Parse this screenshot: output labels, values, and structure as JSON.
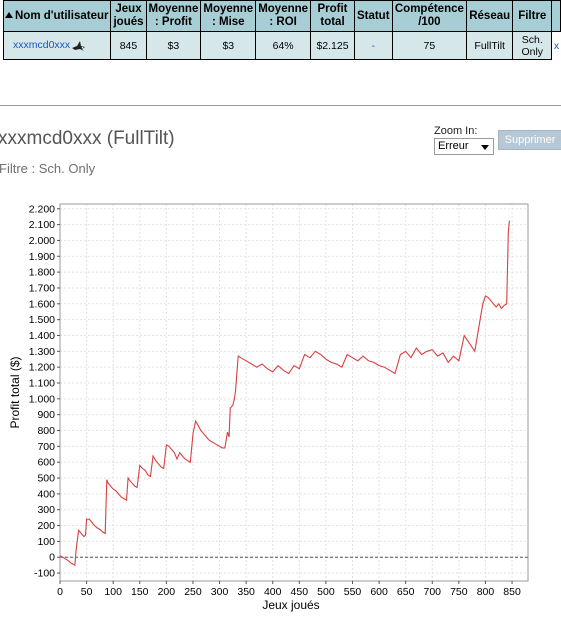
{
  "table": {
    "headers": {
      "user": "Nom d'utilisateur",
      "games": [
        "Jeux",
        "joués"
      ],
      "avg_profit": [
        "Moyenne",
        ": Profit"
      ],
      "avg_stake": [
        "Moyenne",
        ": Mise"
      ],
      "avg_roi": [
        "Moyenne",
        ": ROI"
      ],
      "total_profit": [
        "Profit",
        "total"
      ],
      "status": "Statut",
      "skill": [
        "Compétence",
        "/100"
      ],
      "network": "Réseau",
      "filter": "Filtre"
    },
    "row": {
      "user": "xxxmcd0xxx",
      "games": "845",
      "avg_profit": "$3",
      "avg_stake": "$3",
      "avg_roi": "64%",
      "total_profit": "$2.125",
      "status": "-",
      "skill": "75",
      "network": "FullTilt",
      "filter": [
        "Sch.",
        "Only"
      ],
      "remove": "x"
    }
  },
  "header": {
    "title": "xxxmcd0xxx (FullTilt)",
    "filter_text": "Filtre : Sch. Only",
    "zoom_label": "Zoom In:",
    "zoom_value": "Erreur",
    "delete_label": "Supprimer"
  },
  "chart_data": {
    "type": "line",
    "xlabel": "Jeux joués",
    "ylabel": "Profit total ($)",
    "xlim": [
      0,
      880
    ],
    "ylim": [
      -150,
      2230
    ],
    "x_ticks": [
      0,
      50,
      100,
      150,
      200,
      250,
      300,
      350,
      400,
      450,
      500,
      550,
      600,
      650,
      700,
      750,
      800,
      850
    ],
    "y_ticks": [
      -100,
      0,
      100,
      200,
      300,
      400,
      500,
      600,
      700,
      800,
      900,
      1000,
      1100,
      1200,
      1300,
      1400,
      1500,
      1600,
      1700,
      1800,
      1900,
      2000,
      2100,
      2200
    ],
    "y_tick_labels": [
      "-100",
      "0",
      "100",
      "200",
      "300",
      "400",
      "500",
      "600",
      "700",
      "800",
      "900",
      "1.000",
      "1.100",
      "1.200",
      "1.300",
      "1.400",
      "1.500",
      "1.600",
      "1.700",
      "1.800",
      "1.900",
      "2.000",
      "2.100",
      "2.200"
    ],
    "grid": true,
    "line_color": "#d94040",
    "zero_line_color": "#555555",
    "series": [
      {
        "x": [
          0,
          5,
          10,
          15,
          20,
          25,
          28,
          30,
          35,
          40,
          45,
          48,
          50,
          55,
          60,
          65,
          70,
          75,
          80,
          85,
          88,
          90,
          95,
          100,
          105,
          110,
          115,
          120,
          125,
          128,
          130,
          135,
          140,
          145,
          150,
          155,
          160,
          165,
          170,
          175,
          180,
          185,
          190,
          195,
          200,
          205,
          210,
          215,
          220,
          225,
          230,
          235,
          240,
          245,
          250,
          255,
          260,
          265,
          270,
          275,
          280,
          285,
          290,
          295,
          300,
          305,
          310,
          315,
          318,
          320,
          325,
          328,
          330,
          335,
          340,
          350,
          360,
          370,
          380,
          390,
          400,
          410,
          420,
          430,
          440,
          450,
          460,
          470,
          480,
          490,
          500,
          510,
          520,
          530,
          540,
          550,
          560,
          570,
          580,
          590,
          600,
          610,
          620,
          630,
          640,
          650,
          660,
          670,
          680,
          690,
          700,
          710,
          720,
          730,
          740,
          750,
          760,
          770,
          780,
          790,
          795,
          800,
          805,
          810,
          815,
          820,
          825,
          830,
          835,
          840,
          843,
          845
        ],
        "y": [
          10,
          0,
          -10,
          -20,
          -35,
          -45,
          -50,
          40,
          170,
          150,
          130,
          140,
          240,
          240,
          220,
          200,
          185,
          175,
          160,
          150,
          490,
          470,
          450,
          430,
          420,
          400,
          380,
          370,
          360,
          500,
          490,
          470,
          450,
          440,
          580,
          560,
          550,
          520,
          510,
          640,
          610,
          590,
          570,
          560,
          710,
          700,
          680,
          660,
          620,
          660,
          640,
          620,
          610,
          600,
          780,
          860,
          830,
          800,
          780,
          760,
          740,
          730,
          720,
          710,
          700,
          690,
          690,
          790,
          760,
          940,
          960,
          1000,
          1050,
          1270,
          1260,
          1240,
          1220,
          1200,
          1220,
          1190,
          1170,
          1210,
          1180,
          1160,
          1210,
          1190,
          1280,
          1260,
          1300,
          1280,
          1250,
          1230,
          1220,
          1200,
          1280,
          1260,
          1240,
          1270,
          1240,
          1230,
          1210,
          1200,
          1180,
          1160,
          1280,
          1300,
          1260,
          1320,
          1280,
          1300,
          1310,
          1270,
          1290,
          1230,
          1270,
          1240,
          1400,
          1350,
          1300,
          1500,
          1600,
          1650,
          1640,
          1620,
          1600,
          1580,
          1600,
          1570,
          1590,
          1600,
          2050,
          2125
        ]
      }
    ]
  }
}
